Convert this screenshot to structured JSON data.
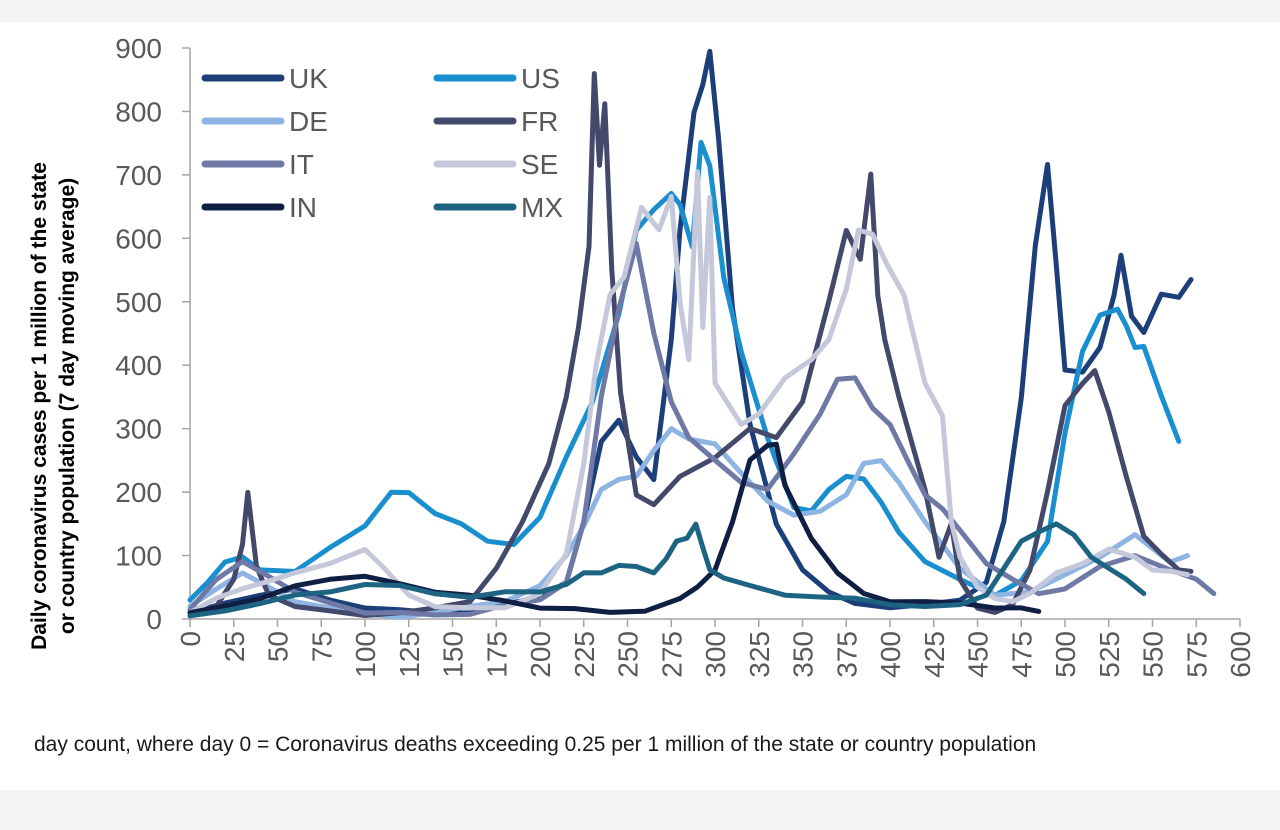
{
  "chart_data": {
    "type": "line",
    "title": "",
    "xlabel": "day count, where day 0 = Coronavirus deaths exceeding 0.25 per 1 million of the state or country population",
    "ylabel_lines": [
      "Daily coronavirus cases per 1 million of the state",
      "or country population (7 day moving average)"
    ],
    "xlim": [
      0,
      600
    ],
    "ylim": [
      0,
      900
    ],
    "xticks": [
      0,
      25,
      50,
      75,
      100,
      125,
      150,
      175,
      200,
      225,
      250,
      275,
      300,
      325,
      350,
      375,
      400,
      425,
      450,
      475,
      500,
      525,
      550,
      575,
      600
    ],
    "yticks": [
      0,
      100,
      200,
      300,
      400,
      500,
      600,
      700,
      800,
      900
    ],
    "legend_position": "top-left",
    "series": [
      {
        "name": "UK",
        "color": "#1c3f7a",
        "x": [
          0,
          20,
          40,
          60,
          80,
          100,
          120,
          140,
          160,
          180,
          200,
          215,
          225,
          235,
          245,
          255,
          265,
          275,
          280,
          288,
          293,
          297,
          302,
          310,
          320,
          335,
          350,
          365,
          380,
          400,
          420,
          440,
          455,
          465,
          475,
          483,
          490,
          495,
          500,
          510,
          520,
          528,
          532,
          538,
          545,
          555,
          565,
          572
        ],
        "y": [
          10,
          25,
          40,
          45,
          30,
          20,
          12,
          10,
          12,
          20,
          35,
          60,
          150,
          280,
          320,
          250,
          220,
          450,
          600,
          800,
          860,
          875,
          760,
          500,
          300,
          150,
          80,
          40,
          25,
          20,
          20,
          30,
          60,
          150,
          350,
          600,
          700,
          560,
          400,
          380,
          430,
          520,
          560,
          480,
          460,
          500,
          510,
          535
        ]
      },
      {
        "name": "US",
        "color": "#1a8fcf",
        "x": [
          0,
          10,
          20,
          30,
          40,
          60,
          80,
          100,
          115,
          125,
          140,
          155,
          170,
          185,
          200,
          215,
          230,
          245,
          255,
          265,
          275,
          280,
          287,
          292,
          297,
          305,
          315,
          330,
          345,
          355,
          365,
          375,
          385,
          395,
          405,
          420,
          440,
          460,
          475,
          490,
          500,
          510,
          520,
          530,
          535,
          540,
          545,
          555,
          565
        ],
        "y": [
          30,
          60,
          90,
          95,
          80,
          75,
          110,
          150,
          200,
          195,
          170,
          150,
          120,
          120,
          160,
          250,
          350,
          480,
          600,
          660,
          670,
          640,
          600,
          750,
          700,
          550,
          420,
          280,
          180,
          170,
          200,
          230,
          220,
          180,
          140,
          90,
          60,
          40,
          60,
          120,
          300,
          420,
          470,
          500,
          460,
          420,
          440,
          350,
          280
        ]
      },
      {
        "name": "DE",
        "color": "#8db4e2",
        "x": [
          0,
          15,
          30,
          45,
          60,
          80,
          100,
          120,
          140,
          160,
          180,
          200,
          215,
          225,
          235,
          245,
          255,
          265,
          275,
          285,
          300,
          315,
          330,
          345,
          360,
          375,
          385,
          395,
          405,
          420,
          440,
          460,
          480,
          500,
          520,
          540,
          560,
          570
        ],
        "y": [
          20,
          50,
          70,
          50,
          30,
          15,
          8,
          5,
          8,
          20,
          30,
          50,
          100,
          150,
          200,
          220,
          230,
          260,
          300,
          290,
          270,
          230,
          190,
          160,
          170,
          200,
          240,
          250,
          220,
          150,
          80,
          40,
          40,
          70,
          100,
          130,
          90,
          100
        ]
      },
      {
        "name": "FR",
        "color": "#43496b",
        "x": [
          0,
          15,
          25,
          30,
          33,
          38,
          45,
          60,
          80,
          100,
          120,
          140,
          160,
          175,
          190,
          205,
          215,
          222,
          228,
          231,
          234,
          237,
          241,
          246,
          255,
          265,
          280,
          300,
          320,
          335,
          350,
          365,
          375,
          383,
          389,
          393,
          397,
          405,
          420,
          428,
          435,
          440,
          450,
          460,
          470,
          480,
          490,
          500,
          510,
          517,
          525,
          535,
          545,
          555,
          565,
          572
        ],
        "y": [
          5,
          20,
          60,
          120,
          200,
          80,
          40,
          20,
          10,
          8,
          10,
          15,
          30,
          80,
          150,
          250,
          350,
          450,
          600,
          860,
          700,
          830,
          550,
          350,
          200,
          180,
          220,
          260,
          300,
          280,
          350,
          500,
          600,
          580,
          700,
          500,
          450,
          350,
          200,
          100,
          150,
          60,
          20,
          10,
          20,
          80,
          200,
          330,
          380,
          390,
          320,
          230,
          130,
          100,
          80,
          75
        ]
      },
      {
        "name": "IT",
        "color": "#6e79a6",
        "x": [
          0,
          15,
          30,
          45,
          60,
          80,
          100,
          120,
          140,
          160,
          180,
          200,
          215,
          225,
          235,
          245,
          255,
          265,
          275,
          285,
          300,
          315,
          330,
          345,
          360,
          370,
          380,
          390,
          400,
          410,
          420,
          430,
          440,
          455,
          470,
          485,
          500,
          520,
          540,
          560,
          575,
          585
        ],
        "y": [
          15,
          60,
          90,
          70,
          40,
          25,
          12,
          8,
          6,
          10,
          20,
          30,
          60,
          150,
          350,
          500,
          580,
          450,
          350,
          280,
          250,
          220,
          200,
          260,
          330,
          370,
          380,
          340,
          300,
          250,
          200,
          170,
          140,
          90,
          60,
          40,
          50,
          80,
          100,
          80,
          60,
          40
        ]
      },
      {
        "name": "SE",
        "color": "#c4c8da",
        "x": [
          0,
          15,
          30,
          45,
          60,
          80,
          100,
          110,
          125,
          140,
          160,
          180,
          200,
          215,
          225,
          232,
          240,
          248,
          258,
          268,
          275,
          280,
          285,
          290,
          293,
          297,
          300,
          305,
          315,
          325,
          340,
          355,
          365,
          375,
          382,
          390,
          398,
          408,
          420,
          430,
          435,
          440,
          450,
          460,
          470,
          480,
          495,
          510,
          525,
          540,
          550,
          560,
          570
        ],
        "y": [
          10,
          30,
          50,
          60,
          70,
          90,
          110,
          80,
          40,
          20,
          15,
          20,
          40,
          100,
          250,
          400,
          500,
          550,
          650,
          600,
          680,
          500,
          400,
          720,
          460,
          650,
          380,
          350,
          300,
          330,
          380,
          400,
          450,
          520,
          600,
          620,
          560,
          500,
          380,
          320,
          150,
          100,
          50,
          30,
          30,
          40,
          70,
          90,
          110,
          95,
          80,
          75,
          70
        ]
      },
      {
        "name": "IN",
        "color": "#0f1f44",
        "x": [
          0,
          20,
          40,
          60,
          80,
          90,
          100,
          120,
          140,
          160,
          180,
          200,
          220,
          240,
          260,
          280,
          290,
          300,
          310,
          320,
          330,
          335,
          340,
          355,
          370,
          385,
          400,
          420,
          440,
          460,
          475,
          485
        ],
        "y": [
          10,
          20,
          35,
          50,
          62,
          68,
          65,
          55,
          45,
          35,
          28,
          20,
          14,
          10,
          15,
          30,
          50,
          80,
          150,
          250,
          280,
          270,
          210,
          130,
          70,
          40,
          30,
          25,
          25,
          20,
          15,
          12
        ]
      },
      {
        "name": "MX",
        "color": "#1d6382",
        "x": [
          0,
          20,
          40,
          60,
          80,
          100,
          120,
          140,
          160,
          180,
          200,
          215,
          225,
          235,
          245,
          255,
          265,
          272,
          278,
          284,
          289,
          293,
          297,
          305,
          320,
          340,
          360,
          380,
          400,
          420,
          440,
          455,
          465,
          475,
          485,
          495,
          505,
          515,
          525,
          535,
          545
        ],
        "y": [
          5,
          15,
          25,
          35,
          45,
          55,
          50,
          42,
          35,
          40,
          45,
          55,
          70,
          75,
          85,
          80,
          75,
          95,
          120,
          130,
          150,
          110,
          80,
          65,
          50,
          40,
          35,
          30,
          25,
          20,
          20,
          40,
          80,
          120,
          140,
          150,
          130,
          100,
          80,
          60,
          40
        ]
      }
    ]
  }
}
